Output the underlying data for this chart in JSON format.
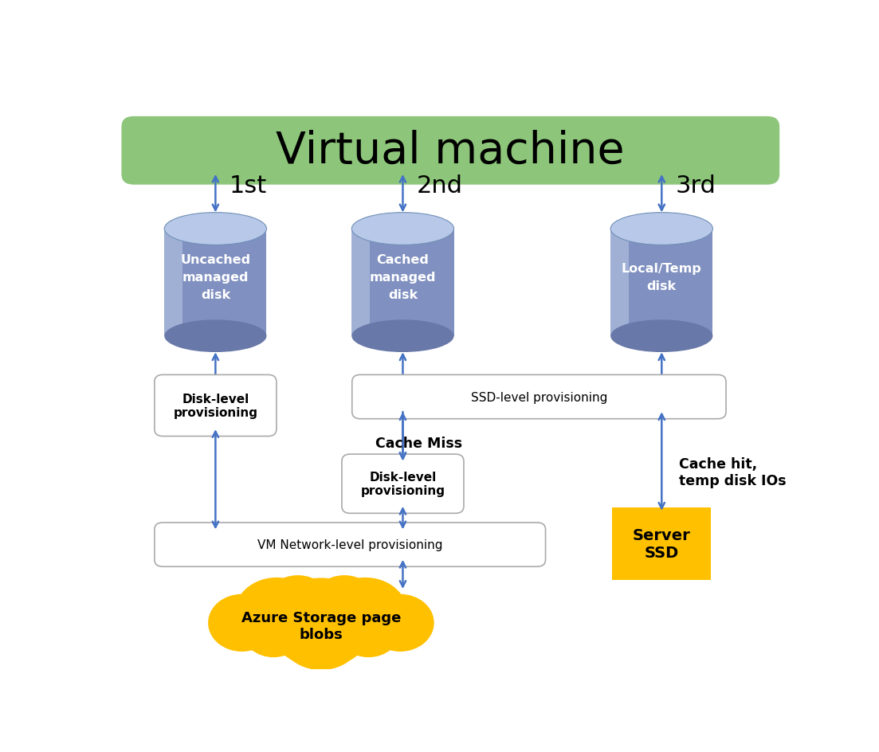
{
  "title": "Virtual machine",
  "title_bg": "#8DC67A",
  "title_fontsize": 40,
  "disk_color_body": "#8090C0",
  "disk_color_top": "#B8C8E8",
  "disk_color_side_light": "#9AAAD0",
  "disk_color_dark": "#6878A8",
  "arrow_color": "#4472C4",
  "box_bg": "#ffffff",
  "box_edge": "#999999",
  "server_ssd_bg": "#FFC000",
  "azure_blob_bg": "#FFC000",
  "labels": {
    "disk1": "Uncached\nmanaged\ndisk",
    "disk2": "Cached\nmanaged\ndisk",
    "disk3": "Local/Temp\ndisk",
    "level1": "1st",
    "level2": "2nd",
    "level3": "3rd",
    "box_disk_level1": "Disk-level\nprovisioning",
    "box_ssd_level": "SSD-level provisioning",
    "box_disk_level2": "Disk-level\nprovisioning",
    "box_vm_network": "VM Network-level provisioning",
    "cache_miss": "Cache Miss",
    "cache_hit": "Cache hit,\ntemp disk IOs",
    "server_ssd": "Server\nSSD",
    "azure_blob": "Azure Storage page\nblobs"
  },
  "figsize": [
    11.03,
    9.45
  ],
  "dpi": 100
}
